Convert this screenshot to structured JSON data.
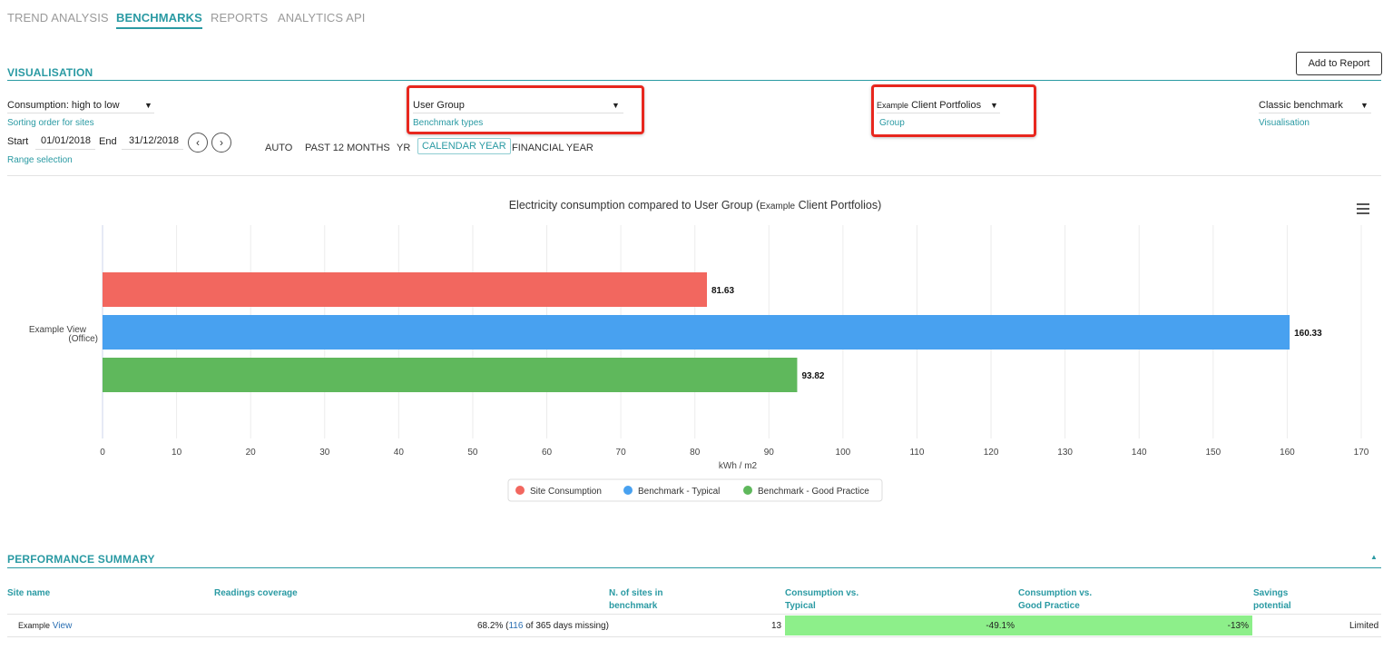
{
  "nav": {
    "tabs": [
      {
        "label": "TREND ANALYSIS",
        "active": false
      },
      {
        "label": "BENCHMARKS",
        "active": true
      },
      {
        "label": "REPORTS",
        "active": false
      },
      {
        "label": "ANALYTICS API",
        "active": false
      }
    ]
  },
  "visualisation": {
    "title": "VISUALISATION",
    "add_to_report": "Add to Report",
    "sort_select": {
      "value": "Consumption: high to low",
      "label": "Sorting order for sites"
    },
    "benchmark_type_select": {
      "value": "User Group",
      "label": "Benchmark types"
    },
    "group_select": {
      "prefix": "Example",
      "value": "Client Portfolios",
      "label": "Group"
    },
    "visualisation_select": {
      "value": "Classic benchmark",
      "label": "Visualisation"
    },
    "range": {
      "start_label": "Start",
      "start_value": "01/01/2018",
      "end_label": "End",
      "end_value": "31/12/2018",
      "label": "Range selection",
      "prev_icon": "chevron-left-icon",
      "next_icon": "chevron-right-icon",
      "options": [
        "AUTO",
        "PAST 12 MONTHS",
        "YR",
        "CALENDAR YEAR",
        "FINANCIAL YEAR"
      ],
      "selected": "CALENDAR YEAR"
    }
  },
  "chart_menu_icon": "hamburger-menu-icon",
  "chart_data": {
    "type": "bar",
    "orientation": "horizontal",
    "title_main": "Electricity consumption compared to User Group (",
    "title_example": "Example",
    "title_rest": " Client Portfolios)",
    "categories": [
      "Example View (Office)"
    ],
    "category_label_line1": "Example  View",
    "category_label_line2": "(Office)",
    "series": [
      {
        "name": "Site Consumption",
        "values": [
          81.63
        ],
        "color": "#f2675f"
      },
      {
        "name": "Benchmark - Typical",
        "values": [
          160.33
        ],
        "color": "#48a1f0"
      },
      {
        "name": "Benchmark - Good Practice",
        "values": [
          93.82
        ],
        "color": "#5fb85c"
      }
    ],
    "xlabel": "kWh / m2",
    "xlim": [
      0,
      170
    ],
    "xticks": [
      0,
      10,
      20,
      30,
      40,
      50,
      60,
      70,
      80,
      90,
      100,
      110,
      120,
      130,
      140,
      150,
      160,
      170
    ],
    "grid": true,
    "legend": "bottom-center"
  },
  "performance": {
    "title": "PERFORMANCE SUMMARY",
    "collapse_icon": "caret-up-icon",
    "headers": {
      "site_name": "Site name",
      "coverage": "Readings coverage",
      "n_sites": [
        "N. of sites in",
        "benchmark"
      ],
      "vs_typical": [
        "Consumption vs.",
        "Typical"
      ],
      "vs_good": [
        "Consumption vs.",
        "Good Practice"
      ],
      "savings": [
        "Savings",
        "potential"
      ]
    },
    "rows": [
      {
        "site_prefix": "Example",
        "site_link": "View",
        "coverage_pre": "68.2% (",
        "coverage_link": "116",
        "coverage_post": " of 365 days missing)",
        "n_sites": "13",
        "vs_typical": "-49.1%",
        "vs_good": "-13%",
        "savings": "Limited"
      }
    ]
  }
}
